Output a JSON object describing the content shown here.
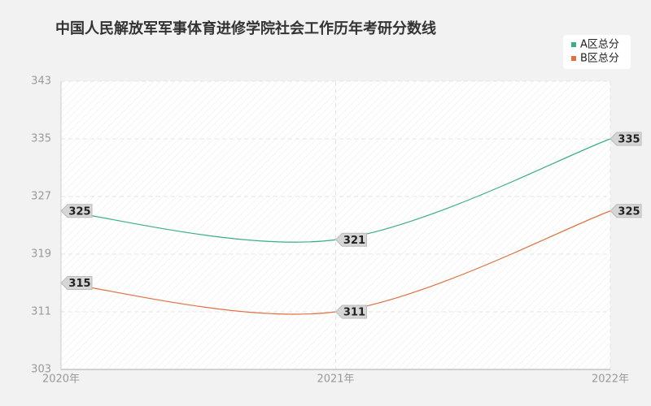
{
  "chart_data": {
    "type": "line",
    "title": "中国人民解放军军事体育进修学院社会工作历年考研分数线",
    "categories": [
      "2020年",
      "2021年",
      "2022年"
    ],
    "series": [
      {
        "name": "A区总分",
        "color": "#3aaf85",
        "values": [
          325,
          321,
          335
        ]
      },
      {
        "name": "B区总分",
        "color": "#e2703f",
        "values": [
          315,
          311,
          325
        ]
      }
    ],
    "ylim": [
      303,
      343
    ],
    "yticks": [
      303,
      311,
      319,
      327,
      335,
      343
    ],
    "grid": true,
    "legend": "top-right",
    "smooth": true
  }
}
